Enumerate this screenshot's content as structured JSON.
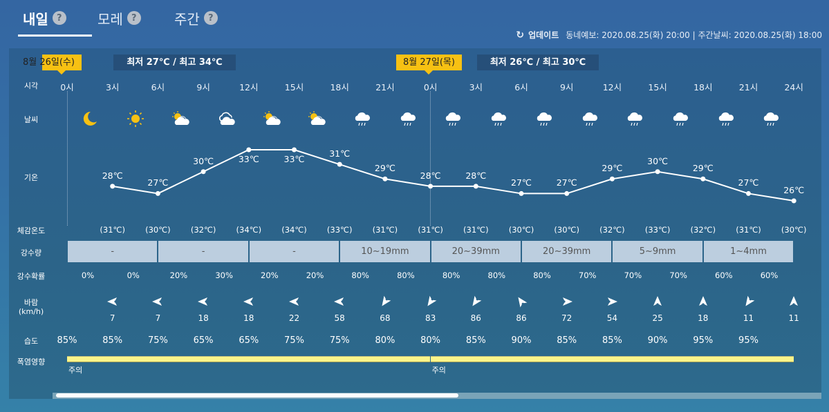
{
  "tabs": [
    {
      "label": "내일",
      "help": "?",
      "active": true
    },
    {
      "label": "모레",
      "help": "?",
      "active": false
    },
    {
      "label": "주간",
      "help": "?",
      "active": false
    }
  ],
  "update": {
    "icon": "refresh-icon",
    "label": "업데이트",
    "text": "동네예보: 2020.08.25(화) 20:00 | 주간날씨: 2020.08.25(화) 18:00"
  },
  "days": [
    {
      "date": "8월 26일(수)",
      "minmax": "최저 27℃ / 최고 34℃"
    },
    {
      "date": "8월 27일(목)",
      "minmax": "최저 26℃ / 최고 30℃"
    }
  ],
  "row_labels": {
    "time": "시각",
    "weather": "날씨",
    "temp": "기온",
    "feels": "체감온도",
    "precip": "강수량",
    "pop": "강수확률",
    "wind": "바람",
    "wind_unit": "(km/h)",
    "humidity": "습도",
    "heat": "폭염영향"
  },
  "times": [
    "0시",
    "3시",
    "6시",
    "9시",
    "12시",
    "15시",
    "18시",
    "21시",
    "0시",
    "3시",
    "6시",
    "9시",
    "12시",
    "15시",
    "18시",
    "21시",
    "24시"
  ],
  "weather_icons": [
    "moon",
    "sun",
    "partly-cloudy",
    "cloudy",
    "partly-cloudy",
    "partly-cloudy",
    "rain",
    "rain",
    "rain",
    "rain",
    "rain",
    "rain",
    "rain",
    "rain",
    "rain",
    "rain"
  ],
  "temps": [
    28,
    27,
    30,
    33,
    33,
    31,
    29,
    28,
    28,
    27,
    27,
    29,
    30,
    29,
    27,
    26
  ],
  "temp_labels": [
    "28℃",
    "27℃",
    "30℃",
    "33℃",
    "33℃",
    "31℃",
    "29℃",
    "28℃",
    "28℃",
    "27℃",
    "27℃",
    "29℃",
    "30℃",
    "29℃",
    "27℃",
    "26℃"
  ],
  "feels": [
    "(31℃)",
    "(30℃)",
    "(32℃)",
    "(34℃)",
    "(34℃)",
    "(33℃)",
    "(31℃)",
    "(31℃)",
    "(31℃)",
    "(30℃)",
    "(30℃)",
    "(32℃)",
    "(33℃)",
    "(32℃)",
    "(31℃)",
    "(30℃)"
  ],
  "precip": [
    "-",
    "-",
    "-",
    "10~19mm",
    "20~39mm",
    "20~39mm",
    "5~9mm",
    "1~4mm"
  ],
  "pop": [
    "0%",
    "0%",
    "20%",
    "30%",
    "20%",
    "20%",
    "80%",
    "80%",
    "80%",
    "80%",
    "80%",
    "70%",
    "70%",
    "70%",
    "60%",
    "60%"
  ],
  "wind": [
    {
      "dir": "W",
      "angle": 180,
      "speed": "7"
    },
    {
      "dir": "W",
      "angle": 180,
      "speed": "7"
    },
    {
      "dir": "W",
      "angle": 180,
      "speed": "18"
    },
    {
      "dir": "W",
      "angle": 180,
      "speed": "18"
    },
    {
      "dir": "W",
      "angle": 180,
      "speed": "22"
    },
    {
      "dir": "W",
      "angle": 180,
      "speed": "58"
    },
    {
      "dir": "SW",
      "angle": 125,
      "speed": "68"
    },
    {
      "dir": "SW",
      "angle": 125,
      "speed": "83"
    },
    {
      "dir": "SW",
      "angle": 125,
      "speed": "86"
    },
    {
      "dir": "NW",
      "angle": 235,
      "speed": "86"
    },
    {
      "dir": "E",
      "angle": 0,
      "speed": "72"
    },
    {
      "dir": "E",
      "angle": 0,
      "speed": "54"
    },
    {
      "dir": "N",
      "angle": 270,
      "speed": "25"
    },
    {
      "dir": "N",
      "angle": 270,
      "speed": "18"
    },
    {
      "dir": "SW",
      "angle": 125,
      "speed": "11"
    },
    {
      "dir": "N",
      "angle": 270,
      "speed": "11"
    }
  ],
  "humidity": [
    "85%",
    "85%",
    "75%",
    "65%",
    "65%",
    "75%",
    "75%",
    "80%",
    "80%",
    "85%",
    "90%",
    "85%",
    "85%",
    "90%",
    "95%",
    "95%"
  ],
  "heat": [
    {
      "level": "주의",
      "color": "#fbf58a"
    },
    {
      "level": "주의",
      "color": "#fbf58a"
    }
  ],
  "colors": {
    "date_tag": "#f7c113",
    "precip_cell": "#bccedf",
    "heat_caution": "#fbf58a"
  }
}
